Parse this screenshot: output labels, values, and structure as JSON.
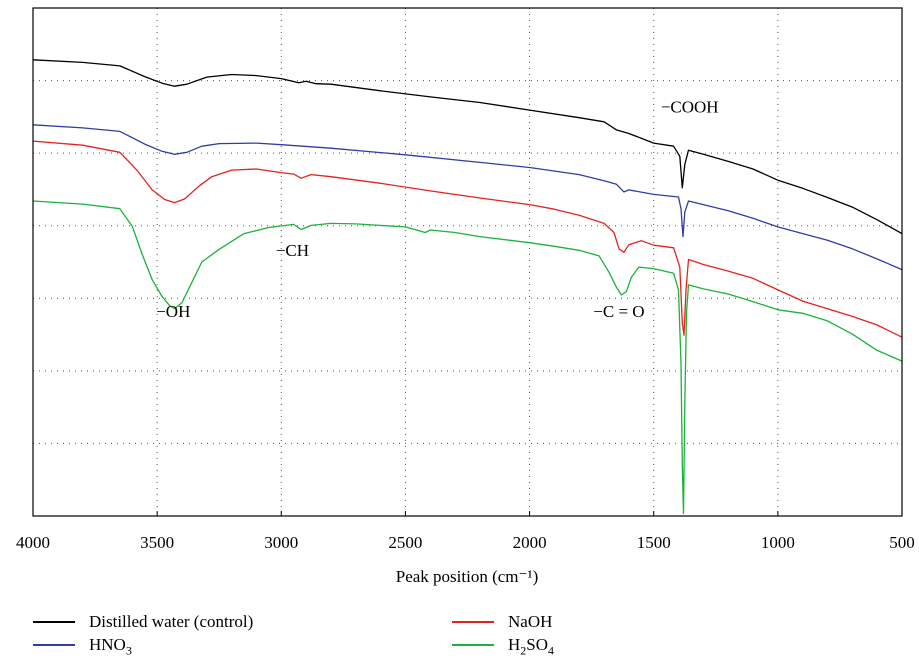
{
  "chart_data": {
    "type": "line",
    "xlabel": "Peak position (cm⁻¹)",
    "xlim": [
      4000,
      500
    ],
    "ylim": [
      0,
      100
    ],
    "x_ticks": [
      "4000",
      "3500",
      "3000",
      "2500",
      "2000",
      "1500",
      "1000",
      "500"
    ],
    "y_axis_labels": false,
    "grid": "dotted",
    "legend_position": "bottom",
    "series": [
      {
        "name": "Distilled water (control)",
        "color": "#000000",
        "points": [
          [
            4000,
            89.8
          ],
          [
            3800,
            89.3
          ],
          [
            3650,
            88.6
          ],
          [
            3550,
            86.5
          ],
          [
            3480,
            85.2
          ],
          [
            3430,
            84.6
          ],
          [
            3380,
            85.0
          ],
          [
            3300,
            86.4
          ],
          [
            3200,
            86.9
          ],
          [
            3100,
            86.7
          ],
          [
            3000,
            86.1
          ],
          [
            2930,
            85.3
          ],
          [
            2900,
            85.6
          ],
          [
            2860,
            85.1
          ],
          [
            2800,
            85.0
          ],
          [
            2600,
            83.7
          ],
          [
            2400,
            82.5
          ],
          [
            2200,
            81.4
          ],
          [
            2000,
            79.9
          ],
          [
            1800,
            78.4
          ],
          [
            1700,
            77.6
          ],
          [
            1650,
            76.0
          ],
          [
            1600,
            75.3
          ],
          [
            1500,
            73.4
          ],
          [
            1420,
            72.8
          ],
          [
            1395,
            70.8
          ],
          [
            1385,
            64.6
          ],
          [
            1375,
            69.2
          ],
          [
            1360,
            72.0
          ],
          [
            1300,
            71.2
          ],
          [
            1200,
            69.8
          ],
          [
            1100,
            68.3
          ],
          [
            1000,
            66.1
          ],
          [
            900,
            64.5
          ],
          [
            800,
            62.7
          ],
          [
            700,
            60.8
          ],
          [
            600,
            58.3
          ],
          [
            500,
            55.6
          ]
        ]
      },
      {
        "name": "HNO3",
        "color": "#2f3da5",
        "points": [
          [
            4000,
            77.0
          ],
          [
            3800,
            76.4
          ],
          [
            3650,
            75.7
          ],
          [
            3550,
            73.2
          ],
          [
            3480,
            71.8
          ],
          [
            3430,
            71.2
          ],
          [
            3380,
            71.6
          ],
          [
            3320,
            72.8
          ],
          [
            3250,
            73.3
          ],
          [
            3100,
            73.4
          ],
          [
            3000,
            73.1
          ],
          [
            2800,
            72.4
          ],
          [
            2500,
            71.1
          ],
          [
            2200,
            69.6
          ],
          [
            2000,
            68.6
          ],
          [
            1800,
            67.2
          ],
          [
            1700,
            66.0
          ],
          [
            1650,
            65.3
          ],
          [
            1620,
            63.8
          ],
          [
            1600,
            64.2
          ],
          [
            1500,
            63.3
          ],
          [
            1400,
            62.8
          ],
          [
            1390,
            60.5
          ],
          [
            1382,
            55.0
          ],
          [
            1375,
            59.8
          ],
          [
            1360,
            62.0
          ],
          [
            1300,
            61.3
          ],
          [
            1200,
            60.1
          ],
          [
            1100,
            58.6
          ],
          [
            1000,
            56.9
          ],
          [
            900,
            55.6
          ],
          [
            800,
            54.3
          ],
          [
            700,
            52.6
          ],
          [
            600,
            50.6
          ],
          [
            500,
            48.5
          ]
        ]
      },
      {
        "name": "NaOH",
        "color": "#e4231f",
        "points": [
          [
            4000,
            73.8
          ],
          [
            3800,
            73.0
          ],
          [
            3650,
            71.6
          ],
          [
            3580,
            68.0
          ],
          [
            3520,
            64.2
          ],
          [
            3470,
            62.3
          ],
          [
            3430,
            61.7
          ],
          [
            3390,
            62.4
          ],
          [
            3330,
            65.0
          ],
          [
            3280,
            66.8
          ],
          [
            3200,
            68.1
          ],
          [
            3100,
            68.3
          ],
          [
            3000,
            67.6
          ],
          [
            2950,
            67.3
          ],
          [
            2920,
            66.5
          ],
          [
            2880,
            67.2
          ],
          [
            2800,
            66.8
          ],
          [
            2600,
            65.5
          ],
          [
            2400,
            64.0
          ],
          [
            2200,
            62.6
          ],
          [
            2000,
            61.3
          ],
          [
            1900,
            60.4
          ],
          [
            1800,
            59.2
          ],
          [
            1700,
            57.6
          ],
          [
            1660,
            55.8
          ],
          [
            1640,
            52.6
          ],
          [
            1620,
            51.9
          ],
          [
            1600,
            53.4
          ],
          [
            1550,
            54.2
          ],
          [
            1500,
            53.3
          ],
          [
            1420,
            52.8
          ],
          [
            1395,
            49.0
          ],
          [
            1385,
            38.0
          ],
          [
            1378,
            35.6
          ],
          [
            1370,
            44.5
          ],
          [
            1360,
            50.5
          ],
          [
            1300,
            49.5
          ],
          [
            1200,
            48.2
          ],
          [
            1100,
            46.8
          ],
          [
            1000,
            44.5
          ],
          [
            900,
            42.3
          ],
          [
            800,
            40.8
          ],
          [
            700,
            39.3
          ],
          [
            600,
            37.6
          ],
          [
            500,
            35.2
          ]
        ]
      },
      {
        "name": "H2SO4",
        "color": "#1db23b",
        "points": [
          [
            4000,
            62.0
          ],
          [
            3800,
            61.4
          ],
          [
            3650,
            60.5
          ],
          [
            3600,
            57.0
          ],
          [
            3560,
            51.5
          ],
          [
            3520,
            46.5
          ],
          [
            3480,
            43.2
          ],
          [
            3450,
            41.4
          ],
          [
            3430,
            40.8
          ],
          [
            3400,
            42.0
          ],
          [
            3360,
            46.0
          ],
          [
            3320,
            50.0
          ],
          [
            3250,
            52.5
          ],
          [
            3150,
            55.6
          ],
          [
            3050,
            56.8
          ],
          [
            2950,
            57.4
          ],
          [
            2920,
            56.4
          ],
          [
            2880,
            57.2
          ],
          [
            2800,
            57.6
          ],
          [
            2700,
            57.5
          ],
          [
            2500,
            56.9
          ],
          [
            2420,
            55.8
          ],
          [
            2400,
            56.3
          ],
          [
            2300,
            55.8
          ],
          [
            2200,
            55.0
          ],
          [
            2000,
            53.8
          ],
          [
            1900,
            53.1
          ],
          [
            1800,
            52.3
          ],
          [
            1720,
            51.2
          ],
          [
            1680,
            48.0
          ],
          [
            1650,
            45.0
          ],
          [
            1630,
            43.5
          ],
          [
            1610,
            44.2
          ],
          [
            1590,
            47.0
          ],
          [
            1560,
            49.0
          ],
          [
            1500,
            48.7
          ],
          [
            1420,
            47.8
          ],
          [
            1400,
            44.5
          ],
          [
            1390,
            30.0
          ],
          [
            1385,
            10.0
          ],
          [
            1380,
            0.5
          ],
          [
            1375,
            22.0
          ],
          [
            1368,
            40.0
          ],
          [
            1360,
            45.5
          ],
          [
            1300,
            44.7
          ],
          [
            1200,
            43.7
          ],
          [
            1100,
            42.2
          ],
          [
            1000,
            40.6
          ],
          [
            900,
            39.9
          ],
          [
            800,
            38.4
          ],
          [
            700,
            35.8
          ],
          [
            600,
            32.6
          ],
          [
            500,
            30.5
          ]
        ]
      }
    ],
    "annotations": [
      {
        "text": "−COOH",
        "x": 1355,
        "y": 79.4
      },
      {
        "text": "−CH",
        "x": 2955,
        "y": 51.2
      },
      {
        "text": "−OH",
        "x": 3435,
        "y": 39.2
      },
      {
        "text": "−C = O",
        "x": 1640,
        "y": 39.2
      }
    ]
  },
  "legend": {
    "items": [
      {
        "label": "Distilled water (control)",
        "color": "#000000"
      },
      {
        "base": "NaOH",
        "color": "#e4231f"
      },
      {
        "base": "HNO",
        "sub": "3",
        "color": "#2f3da5"
      },
      {
        "base": "H",
        "sub": "2",
        "mid": "SO",
        "sub2": "4",
        "color": "#1db23b"
      }
    ]
  }
}
